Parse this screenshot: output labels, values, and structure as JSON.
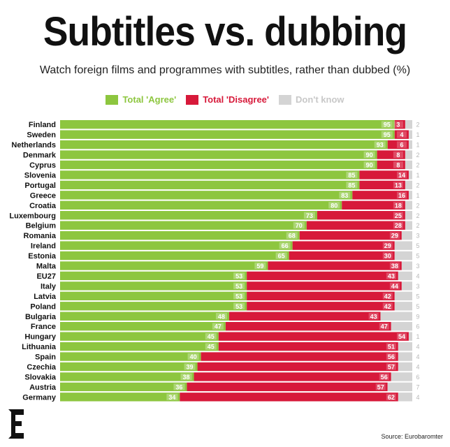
{
  "header": {
    "title": "Subtitles vs. dubbing",
    "subtitle": "Watch foreign films and programmes with subtitles, rather than dubbed (%)"
  },
  "legend": [
    {
      "label": "Total 'Agree'",
      "color": "#8dc63f"
    },
    {
      "label": "Total 'Disagree'",
      "color": "#d7193a"
    },
    {
      "label": "Don't know",
      "color": "#d4d4d4"
    }
  ],
  "footer": {
    "source": "Source: Eurobaromter"
  },
  "chart_data": {
    "type": "bar",
    "orientation": "horizontal",
    "stacked": true,
    "xlim": [
      0,
      100
    ],
    "grid": false,
    "legend_position": "top",
    "categories": [
      "Finland",
      "Sweden",
      "Netherlands",
      "Denmark",
      "Cyprus",
      "Slovenia",
      "Portugal",
      "Greece",
      "Croatia",
      "Luxembourg",
      "Belgium",
      "Romania",
      "Ireland",
      "Estonia",
      "Malta",
      "EU27",
      "Italy",
      "Latvia",
      "Poland",
      "Bulgaria",
      "France",
      "Hungary",
      "Lithuania",
      "Spain",
      "Czechia",
      "Slovakia",
      "Austria",
      "Germany"
    ],
    "series": [
      {
        "name": "Total 'Agree'",
        "color": "#8dc63f",
        "values": [
          95,
          95,
          93,
          90,
          90,
          85,
          85,
          83,
          80,
          73,
          70,
          68,
          66,
          65,
          59,
          53,
          53,
          53,
          53,
          48,
          47,
          45,
          45,
          40,
          39,
          38,
          36,
          34
        ]
      },
      {
        "name": "Total 'Disagree'",
        "color": "#d7193a",
        "values": [
          3,
          4,
          6,
          8,
          8,
          14,
          13,
          16,
          18,
          25,
          28,
          29,
          29,
          30,
          38,
          43,
          44,
          42,
          42,
          43,
          47,
          54,
          51,
          56,
          57,
          56,
          57,
          62
        ]
      },
      {
        "name": "Don't know",
        "color": "#d4d4d4",
        "values": [
          2,
          1,
          1,
          2,
          2,
          1,
          2,
          1,
          2,
          2,
          2,
          3,
          5,
          5,
          3,
          4,
          3,
          5,
          5,
          9,
          6,
          1,
          4,
          4,
          4,
          6,
          7,
          4
        ]
      }
    ]
  }
}
